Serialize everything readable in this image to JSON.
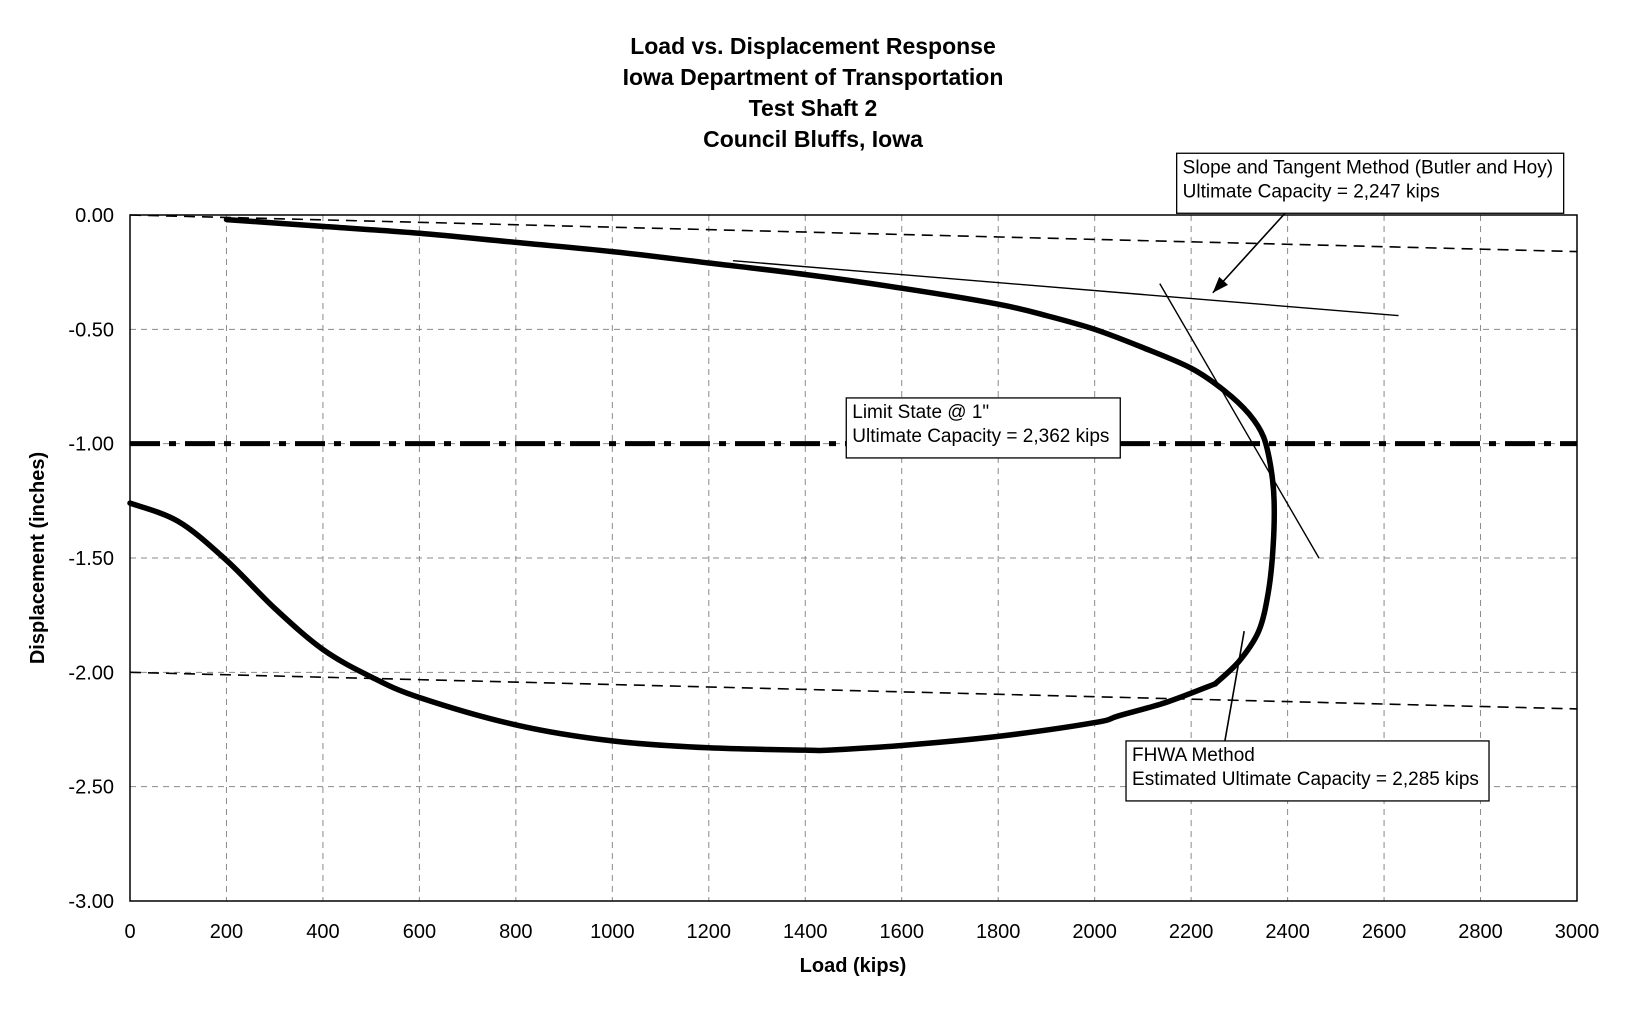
{
  "chart_data": {
    "type": "line",
    "title_lines": [
      "Load vs. Displacement Response",
      "Iowa Department of Transportation",
      "Test Shaft 2",
      "Council Bluffs, Iowa"
    ],
    "xlabel": "Load (kips)",
    "ylabel": "Displacement (inches)",
    "xlim": [
      0,
      3000
    ],
    "ylim": [
      -3.0,
      0.0
    ],
    "x_ticks": [
      "0",
      "200",
      "400",
      "600",
      "800",
      "1000",
      "1200",
      "1400",
      "1600",
      "1800",
      "2000",
      "2200",
      "2400",
      "2600",
      "2800",
      "3000"
    ],
    "y_ticks": [
      "0.00",
      "-0.50",
      "-1.00",
      "-1.50",
      "-2.00",
      "-2.50",
      "-3.00"
    ],
    "grid": true,
    "series": [
      {
        "role": "load-displacement-loading",
        "points": [
          [
            200,
            -0.02
          ],
          [
            400,
            -0.05
          ],
          [
            600,
            -0.08
          ],
          [
            800,
            -0.12
          ],
          [
            1000,
            -0.16
          ],
          [
            1200,
            -0.21
          ],
          [
            1400,
            -0.26
          ],
          [
            1600,
            -0.32
          ],
          [
            1800,
            -0.39
          ],
          [
            1900,
            -0.44
          ],
          [
            2000,
            -0.5
          ],
          [
            2100,
            -0.58
          ],
          [
            2200,
            -0.67
          ],
          [
            2270,
            -0.77
          ],
          [
            2320,
            -0.87
          ],
          [
            2350,
            -0.97
          ],
          [
            2365,
            -1.1
          ],
          [
            2372,
            -1.25
          ],
          [
            2370,
            -1.45
          ],
          [
            2360,
            -1.65
          ],
          [
            2340,
            -1.82
          ],
          [
            2300,
            -1.95
          ],
          [
            2250,
            -2.05
          ]
        ]
      },
      {
        "role": "load-displacement-unloading",
        "points": [
          [
            2250,
            -2.05
          ],
          [
            2150,
            -2.13
          ],
          [
            2050,
            -2.19
          ],
          [
            2000,
            -2.22
          ],
          [
            1800,
            -2.28
          ],
          [
            1600,
            -2.32
          ],
          [
            1450,
            -2.34
          ],
          [
            1400,
            -2.34
          ],
          [
            1200,
            -2.33
          ],
          [
            1000,
            -2.3
          ],
          [
            800,
            -2.23
          ],
          [
            600,
            -2.11
          ],
          [
            500,
            -2.02
          ],
          [
            400,
            -1.9
          ],
          [
            300,
            -1.72
          ],
          [
            200,
            -1.51
          ],
          [
            100,
            -1.34
          ],
          [
            0,
            -1.26
          ]
        ]
      },
      {
        "role": "fhwa-offset-line-upper",
        "style": "dashed",
        "points": [
          [
            0,
            0.0
          ],
          [
            3000,
            -0.16
          ]
        ]
      },
      {
        "role": "fhwa-offset-line-lower",
        "style": "dashed",
        "points": [
          [
            0,
            -2.0
          ],
          [
            3000,
            -2.16
          ]
        ]
      },
      {
        "role": "initial-slope-tangent",
        "style": "thin",
        "points": [
          [
            1250,
            -0.2
          ],
          [
            2630,
            -0.44
          ]
        ]
      },
      {
        "role": "terminal-slope-tangent",
        "style": "thin",
        "points": [
          [
            2135,
            -0.3
          ],
          [
            2465,
            -1.5
          ]
        ]
      },
      {
        "role": "limit-state-line",
        "style": "dash-dot",
        "points": [
          [
            0,
            -1.0
          ],
          [
            3000,
            -1.0
          ]
        ]
      }
    ],
    "annotations": [
      {
        "lines": [
          "Slope and Tangent Method (Butler and Hoy)",
          "Ultimate Capacity = 2,247 kips"
        ],
        "box_corner_data": [
          2170,
          0.27
        ],
        "arrow_to": [
          2245,
          -0.34
        ]
      },
      {
        "lines": [
          "Limit State @ 1\"",
          "Ultimate Capacity = 2,362 kips"
        ],
        "box_corner_data": [
          1485,
          -0.8
        ]
      },
      {
        "lines": [
          "FHWA Method",
          "Estimated Ultimate Capacity = 2,285 kips"
        ],
        "box_corner_data": [
          2065,
          -2.3
        ],
        "pointer_from": [
          2270,
          -2.3
        ],
        "pointer_to": [
          2310,
          -1.82
        ]
      }
    ]
  }
}
